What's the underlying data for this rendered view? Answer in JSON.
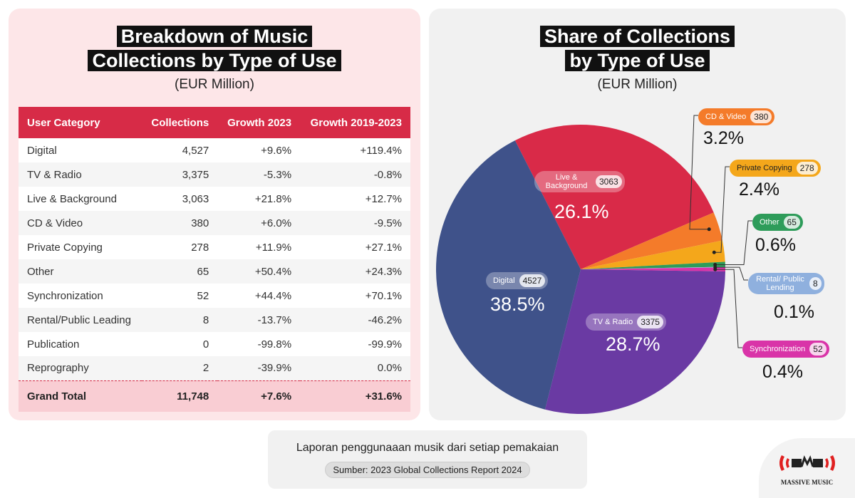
{
  "left": {
    "title_line1": "Breakdown of Music",
    "title_line2": "Collections by Type of Use",
    "subtitle": "(EUR Million)",
    "headers": [
      "User Category",
      "Collections",
      "Growth 2023",
      "Growth 2019-2023"
    ],
    "rows": [
      [
        "Digital",
        "4,527",
        "+9.6%",
        "+119.4%"
      ],
      [
        "TV & Radio",
        "3,375",
        "-5.3%",
        "-0.8%"
      ],
      [
        "Live & Background",
        "3,063",
        "+21.8%",
        "+12.7%"
      ],
      [
        "CD & Video",
        "380",
        "+6.0%",
        "-9.5%"
      ],
      [
        "Private Copying",
        "278",
        "+11.9%",
        "+27.1%"
      ],
      [
        "Other",
        "65",
        "+50.4%",
        "+24.3%"
      ],
      [
        "Synchronization",
        "52",
        "+44.4%",
        "+70.1%"
      ],
      [
        "Rental/Public Leading",
        "8",
        "-13.7%",
        "-46.2%"
      ],
      [
        "Publication",
        "0",
        "-99.8%",
        "-99.9%"
      ],
      [
        "Reprography",
        "2",
        "-39.9%",
        "0.0%"
      ]
    ],
    "total": [
      "Grand Total",
      "11,748",
      "+7.6%",
      "+31.6%"
    ]
  },
  "right": {
    "title_line1": "Share of Collections",
    "title_line2": "by Type of Use",
    "subtitle": "(EUR Million)"
  },
  "chart_data": {
    "type": "pie",
    "title": "Share of Collections by Type of Use",
    "subtitle": "(EUR Million)",
    "slices": [
      {
        "label": "Live & Background",
        "value": 3063,
        "pct": "26.1%",
        "color": "#d92a48"
      },
      {
        "label": "CD & Video",
        "value": 380,
        "pct": "3.2%",
        "color": "#f47b2a"
      },
      {
        "label": "Private Copying",
        "value": 278,
        "pct": "2.4%",
        "color": "#f4a71b"
      },
      {
        "label": "Other",
        "value": 65,
        "pct": "0.6%",
        "color": "#2e9c5a"
      },
      {
        "label": "Rental/ Public Lending",
        "value": 8,
        "pct": "0.1%",
        "color": "#8fb0de"
      },
      {
        "label": "Synchronization",
        "value": 52,
        "pct": "0.4%",
        "color": "#d934a8"
      },
      {
        "label": "TV & Radio",
        "value": 3375,
        "pct": "28.7%",
        "color": "#6a3aa3"
      },
      {
        "label": "Digital",
        "value": 4527,
        "pct": "38.5%",
        "color": "#3f528a"
      }
    ]
  },
  "footer": {
    "text": "Laporan penggunaaan musik dari setiap pemakaian",
    "source": "Sumber: 2023 Global Collections Report 2024"
  },
  "logo": {
    "text": "MASSIVE MUSIC"
  }
}
